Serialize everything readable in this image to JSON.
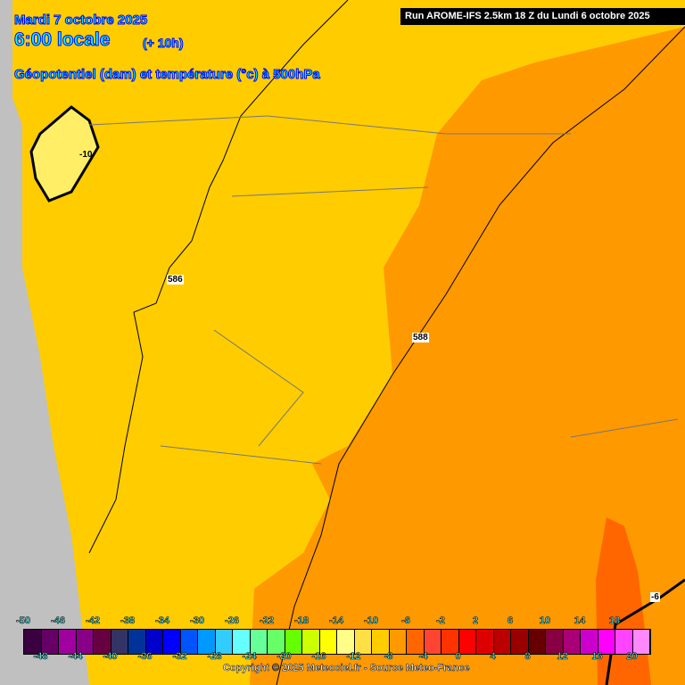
{
  "header": {
    "date": "Mardi 7 octobre 2025",
    "time": "6:00 locale",
    "offset": "(+ 10h)",
    "title": "Géopotentiel (dam) et température (°c) à 500hPa",
    "run": "Run AROME-IFS 2.5km 18 Z du Lundi 6 octobre 2025"
  },
  "map_labels": {
    "geo_586": "586",
    "geo_588": "588",
    "temp_m10": "-10",
    "temp_m6": "-6"
  },
  "legend": {
    "top_ticks": [
      "-50",
      "-46",
      "-42",
      "-38",
      "-34",
      "-30",
      "-26",
      "-22",
      "-18",
      "-14",
      "-10",
      "-6",
      "-2",
      "2",
      "6",
      "10",
      "14",
      "18"
    ],
    "bottom_ticks": [
      "-48",
      "-44",
      "-40",
      "-36",
      "-32",
      "-28",
      "-24",
      "-20",
      "-16",
      "-12",
      "-8",
      "-4",
      "0",
      "4",
      "8",
      "12",
      "16",
      "20"
    ],
    "colors": [
      "#3a0040",
      "#660066",
      "#a000a0",
      "#880088",
      "#660040",
      "#333366",
      "#003399",
      "#0000cc",
      "#0000ff",
      "#0055ff",
      "#0099ff",
      "#33ccff",
      "#66ffff",
      "#66ff99",
      "#66ff66",
      "#66ff00",
      "#ccff00",
      "#ffff00",
      "#ffff88",
      "#ffe044",
      "#ffcc00",
      "#ff9900",
      "#ff6600",
      "#ff4433",
      "#ff3300",
      "#ff0000",
      "#dd0000",
      "#bb0000",
      "#990000",
      "#660000",
      "#880044",
      "#aa0077",
      "#cc00cc",
      "#ff00ff",
      "#ff44ff",
      "#ff88ff"
    ]
  },
  "copyright": "Copyright © 2025 Meteociel.fr - Source Meteo-France"
}
